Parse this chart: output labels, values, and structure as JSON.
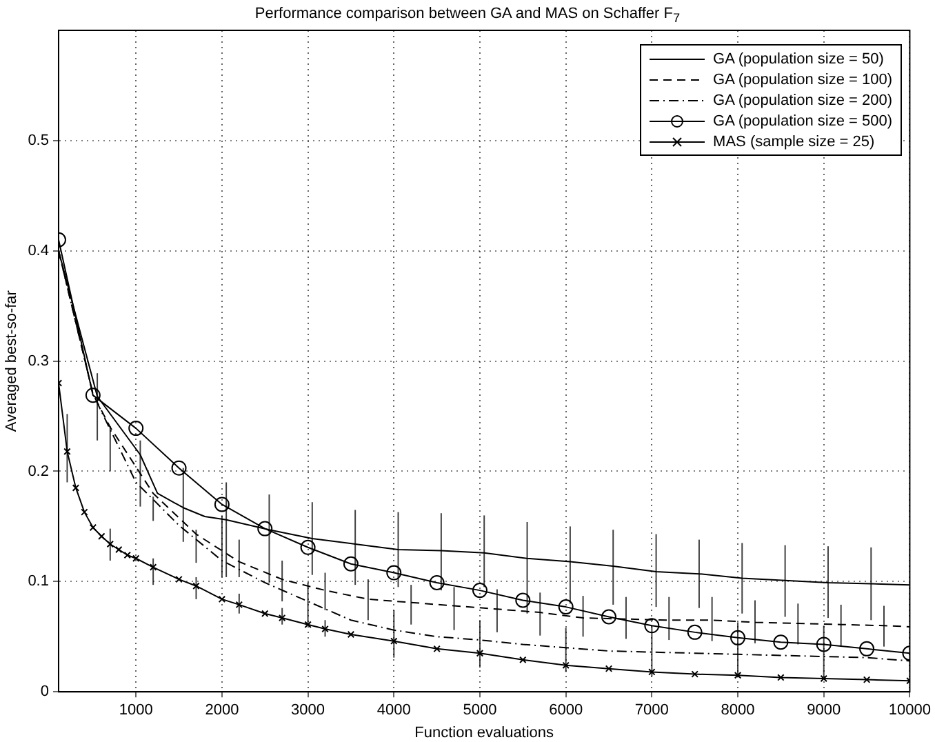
{
  "chart_data": {
    "type": "line",
    "title": "Performance comparison between GA and MAS on Schaffer F$_{7}$",
    "xlabel": "Function evaluations",
    "ylabel": "Averaged best-so-far",
    "xlim": [
      100,
      10000
    ],
    "xticks": [
      1000,
      2000,
      3000,
      4000,
      5000,
      6000,
      7000,
      8000,
      9000,
      10000
    ],
    "ylim": [
      0,
      0.6
    ],
    "yticks": [
      0,
      0.1,
      0.2,
      0.3,
      0.4,
      0.5
    ],
    "grid": true,
    "legend": "top right",
    "series": [
      {
        "name": "GA (population size = 50)",
        "color": "#000000",
        "line_style": "solid",
        "marker": "none",
        "x": [
          100,
          550,
          1050,
          1250,
          1550,
          1800,
          2050,
          2550,
          3050,
          3550,
          4050,
          4550,
          5050,
          5550,
          6050,
          6550,
          7050,
          7550,
          8050,
          8550,
          9050,
          9550,
          10000
        ],
        "values": [
          0.4,
          0.268,
          0.215,
          0.18,
          0.167,
          0.159,
          0.156,
          0.147,
          0.139,
          0.134,
          0.129,
          0.128,
          0.126,
          0.121,
          0.118,
          0.114,
          0.109,
          0.107,
          0.103,
          0.101,
          0.099,
          0.098,
          0.097
        ],
        "errors": [
          null,
          [
            0.228,
            0.289
          ],
          [
            0.168,
            0.228
          ],
          null,
          [
            0.136,
            0.203
          ],
          null,
          [
            0.104,
            0.19
          ],
          [
            0.099,
            0.179
          ],
          [
            0.106,
            0.172
          ],
          [
            0.097,
            0.165
          ],
          [
            0.095,
            0.163
          ],
          [
            0.092,
            0.162
          ],
          [
            0.095,
            0.16
          ],
          [
            0.071,
            0.154
          ],
          [
            0.08,
            0.15
          ],
          [
            0.079,
            0.147
          ],
          [
            0.077,
            0.143
          ],
          [
            0.076,
            0.138
          ],
          [
            0.071,
            0.135
          ],
          [
            0.068,
            0.133
          ],
          [
            0.067,
            0.132
          ],
          [
            0.065,
            0.131
          ],
          null
        ]
      },
      {
        "name": "GA (population size = 100)",
        "color": "#000000",
        "line_style": "dashed",
        "marker": "none",
        "x": [
          100,
          500,
          700,
          1200,
          1700,
          2200,
          2700,
          3200,
          3700,
          4200,
          4700,
          5200,
          5700,
          6200,
          6700,
          7200,
          7700,
          8200,
          8700,
          9200,
          9700,
          10000
        ],
        "values": [
          0.4,
          0.27,
          0.24,
          0.18,
          0.143,
          0.118,
          0.102,
          0.092,
          0.084,
          0.081,
          0.078,
          0.075,
          0.072,
          0.067,
          0.066,
          0.065,
          0.065,
          0.063,
          0.062,
          0.061,
          0.06,
          0.059
        ],
        "errors": [
          null,
          null,
          [
            0.2,
            0.241
          ],
          [
            0.155,
            0.177
          ],
          [
            0.117,
            0.147
          ],
          [
            0.104,
            0.138
          ],
          [
            0.082,
            0.119
          ],
          [
            0.074,
            0.108
          ],
          [
            0.065,
            0.102
          ],
          [
            0.061,
            0.097
          ],
          [
            0.056,
            0.095
          ],
          [
            0.054,
            0.093
          ],
          [
            0.051,
            0.09
          ],
          [
            0.05,
            0.087
          ],
          [
            0.048,
            0.086
          ],
          [
            0.047,
            0.086
          ],
          [
            0.046,
            0.086
          ],
          [
            0.044,
            0.083
          ],
          [
            0.043,
            0.08
          ],
          [
            0.042,
            0.079
          ],
          [
            0.041,
            0.078
          ],
          null
        ]
      },
      {
        "name": "GA (population size = 200)",
        "color": "#000000",
        "line_style": "dashdot",
        "marker": "none",
        "x": [
          100,
          500,
          1000,
          1500,
          2000,
          2500,
          3000,
          3500,
          4000,
          4500,
          5000,
          5500,
          6000,
          6500,
          7000,
          7500,
          8000,
          8500,
          9000,
          9500,
          10000
        ],
        "values": [
          0.4,
          0.27,
          0.19,
          0.151,
          0.119,
          0.099,
          0.082,
          0.065,
          0.056,
          0.05,
          0.047,
          0.043,
          0.04,
          0.037,
          0.036,
          0.035,
          0.034,
          0.033,
          0.032,
          0.031,
          0.028
        ],
        "errors": [
          null,
          null,
          null,
          null,
          [
            0.104,
            0.16
          ],
          null,
          [
            0.061,
            0.099
          ],
          null,
          [
            0.031,
            0.074
          ],
          null,
          [
            0.022,
            0.065
          ],
          null,
          [
            0.018,
            0.058
          ],
          null,
          [
            0.014,
            0.06
          ],
          null,
          [
            0.013,
            0.063
          ],
          null,
          [
            0.013,
            0.06
          ],
          null,
          null
        ]
      },
      {
        "name": "GA (population size = 500)",
        "color": "#000000",
        "line_style": "solid",
        "marker": "circle",
        "x": [
          100,
          500,
          1000,
          1500,
          2000,
          2500,
          3000,
          3500,
          4000,
          4500,
          5000,
          5500,
          6000,
          6500,
          7000,
          7500,
          8000,
          8500,
          9000,
          9500,
          10000
        ],
        "values": [
          0.41,
          0.269,
          0.239,
          0.203,
          0.17,
          0.148,
          0.131,
          0.116,
          0.108,
          0.099,
          0.092,
          0.083,
          0.077,
          0.068,
          0.06,
          0.054,
          0.049,
          0.045,
          0.043,
          0.039,
          0.035
        ]
      },
      {
        "name": "MAS (sample size = 25)",
        "color": "#000000",
        "line_style": "solid",
        "marker": "cross",
        "x": [
          100,
          200,
          300,
          400,
          500,
          600,
          700,
          800,
          900,
          1000,
          1200,
          1500,
          1700,
          2000,
          2200,
          2500,
          2700,
          3000,
          3200,
          3500,
          4000,
          4500,
          5000,
          5500,
          6000,
          6500,
          7000,
          7500,
          8000,
          8500,
          9000,
          9500,
          10000
        ],
        "values": [
          0.28,
          0.218,
          0.185,
          0.163,
          0.149,
          0.141,
          0.134,
          0.129,
          0.124,
          0.121,
          0.113,
          0.102,
          0.096,
          0.084,
          0.079,
          0.071,
          0.067,
          0.061,
          0.057,
          0.052,
          0.046,
          0.039,
          0.035,
          0.029,
          0.024,
          0.021,
          0.018,
          0.016,
          0.015,
          0.013,
          0.012,
          0.011,
          0.01
        ],
        "errors": [
          null,
          [
            0.19,
            0.252
          ],
          null,
          null,
          null,
          null,
          [
            0.119,
            0.148
          ],
          null,
          null,
          null,
          [
            0.097,
            0.121
          ],
          null,
          [
            0.084,
            0.104
          ],
          null,
          [
            0.071,
            0.089
          ],
          null,
          [
            0.061,
            0.076
          ],
          null,
          [
            0.05,
            0.065
          ],
          null,
          null,
          null,
          null,
          null,
          null,
          null,
          null,
          null,
          null,
          null,
          null,
          null,
          null
        ]
      }
    ]
  }
}
